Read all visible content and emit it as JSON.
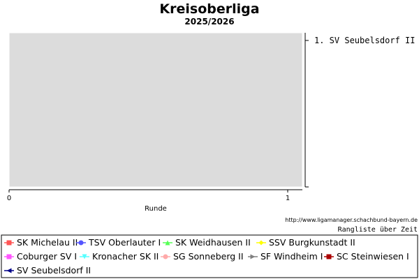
{
  "chart_data": {
    "type": "line",
    "title": "Kreisoberliga",
    "subtitle": "2025/2026",
    "xlabel": "Runde",
    "ylabel": "",
    "x_ticks": [
      "0",
      "1"
    ],
    "xlim": [
      0,
      1
    ],
    "grid": false,
    "ranking": [
      "1. SV Seubelsdorf II"
    ],
    "source": "http://www.ligamanager.schachbund-bayern.de",
    "mode": "Rangliste über Zeit",
    "series": [
      {
        "name": "SK Michelau II",
        "color": "#ff5555",
        "marker": "square",
        "values": []
      },
      {
        "name": "TSV Oberlauter I",
        "color": "#5555ff",
        "marker": "circle",
        "values": []
      },
      {
        "name": "SK Weidhausen II",
        "color": "#55ff55",
        "marker": "triangle-up",
        "values": []
      },
      {
        "name": "SSV Burgkunstadt II",
        "color": "#ffff00",
        "marker": "diamond",
        "values": []
      },
      {
        "name": "Coburger SV I",
        "color": "#ff55ff",
        "marker": "square",
        "values": []
      },
      {
        "name": "Kronacher SK II",
        "color": "#55ffff",
        "marker": "triangle-down",
        "values": []
      },
      {
        "name": "SG Sonneberg II",
        "color": "#ffaaaa",
        "marker": "circle",
        "values": []
      },
      {
        "name": "SF Windheim I",
        "color": "#808080",
        "marker": "triangle-right",
        "values": []
      },
      {
        "name": "SC Steinwiesen I",
        "color": "#aa0000",
        "marker": "square",
        "values": []
      },
      {
        "name": "SV Seubelsdorf II",
        "color": "#000088",
        "marker": "triangle-left",
        "values": []
      }
    ]
  },
  "colors": {
    "plot_background": "#dcdcdc",
    "axis": "#000000"
  }
}
